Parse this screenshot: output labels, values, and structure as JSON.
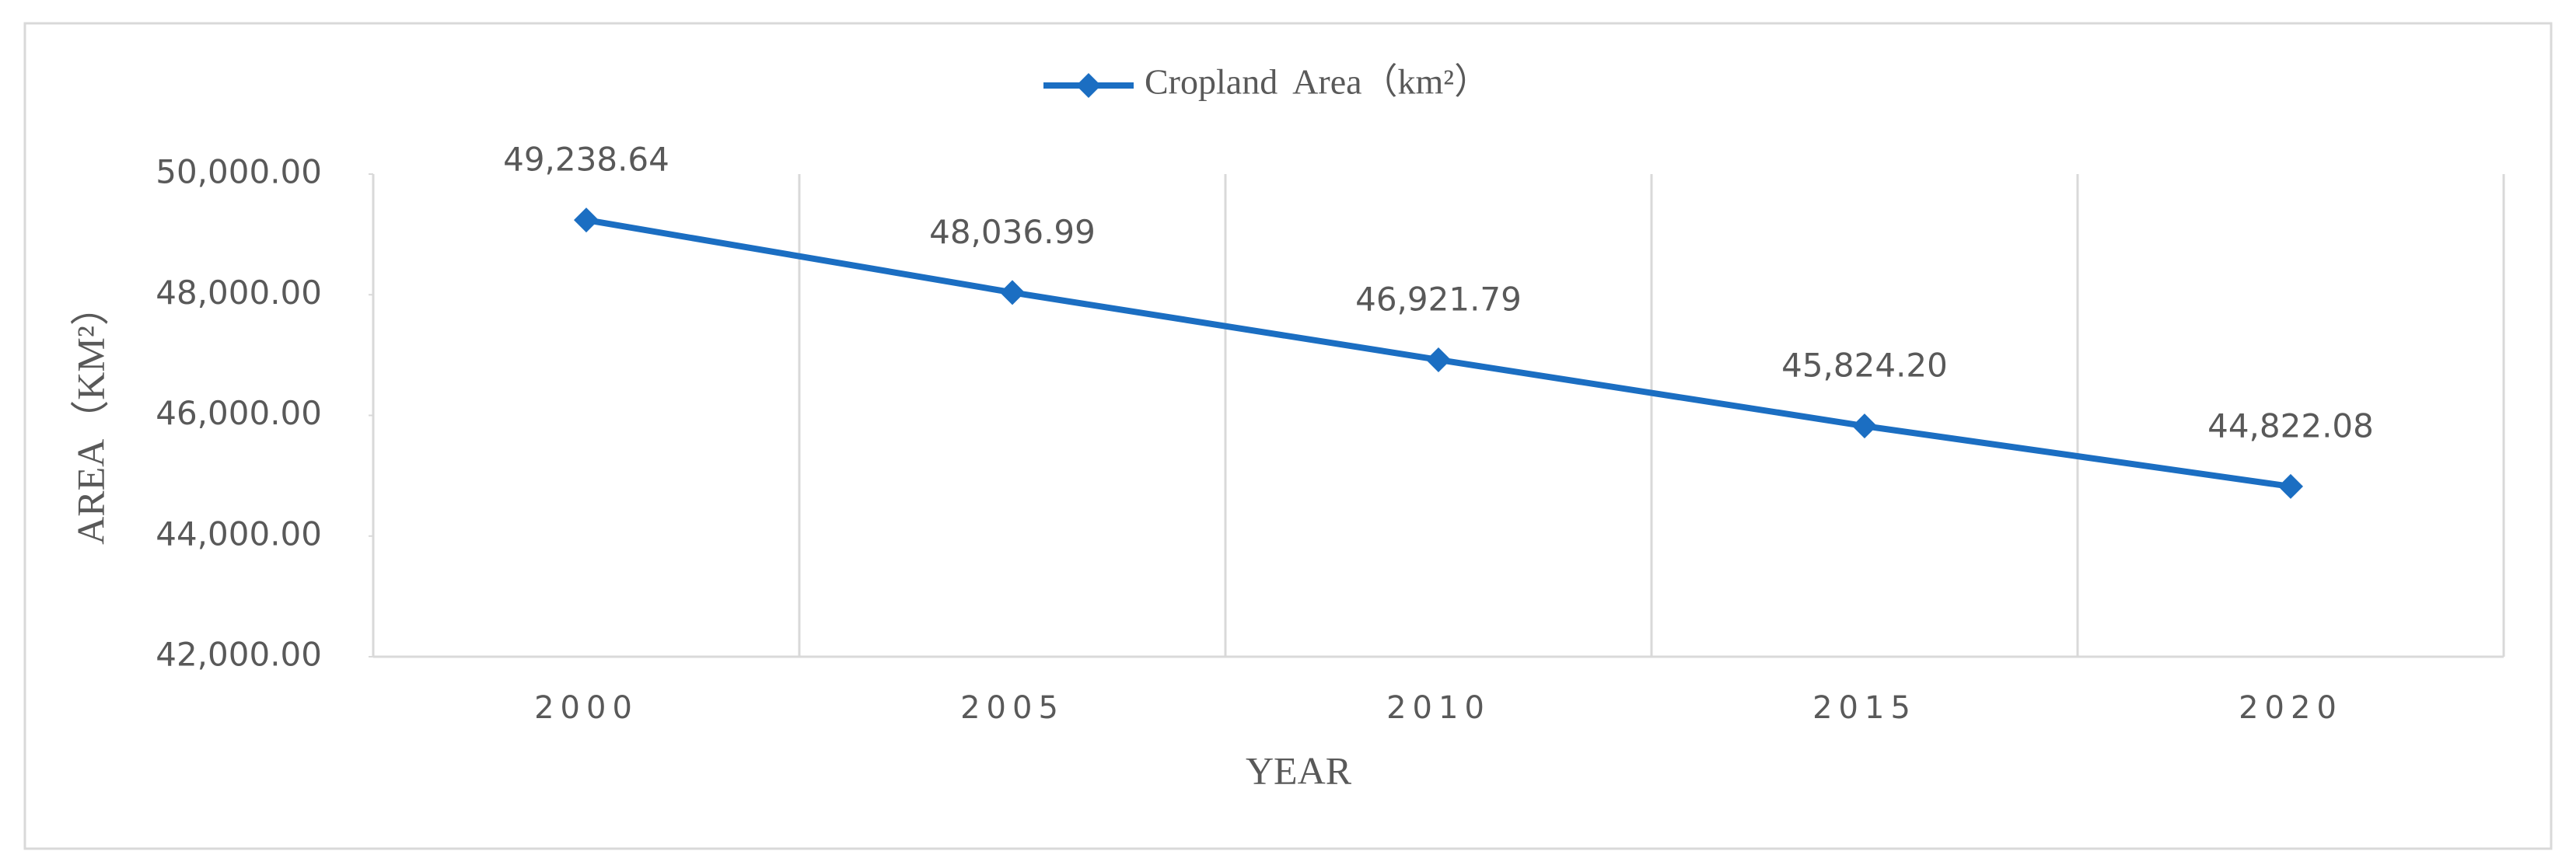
{
  "chart_data": {
    "type": "line",
    "legend": "top",
    "x_label": "YEAR",
    "y_label": "AREA（KM²）",
    "categories": [
      "2000",
      "2005",
      "2010",
      "2015",
      "2020"
    ],
    "series": [
      {
        "name": "Cropland Area（km²）",
        "color": "#1b6ec2",
        "values": [
          49238.64,
          48036.99,
          46921.79,
          45824.2,
          44822.08
        ],
        "value_labels": [
          "49,238.64",
          "48,036.99",
          "46,921.79",
          "45,824.20",
          "44,822.08"
        ]
      }
    ],
    "ylim": [
      42000,
      50000
    ],
    "yticks": [
      {
        "value": 42000,
        "label": "42,000.00"
      },
      {
        "value": 44000,
        "label": "44,000.00"
      },
      {
        "value": 46000,
        "label": "46,000.00"
      },
      {
        "value": 48000,
        "label": "48,000.00"
      },
      {
        "value": 50000,
        "label": "50,000.00"
      }
    ]
  }
}
